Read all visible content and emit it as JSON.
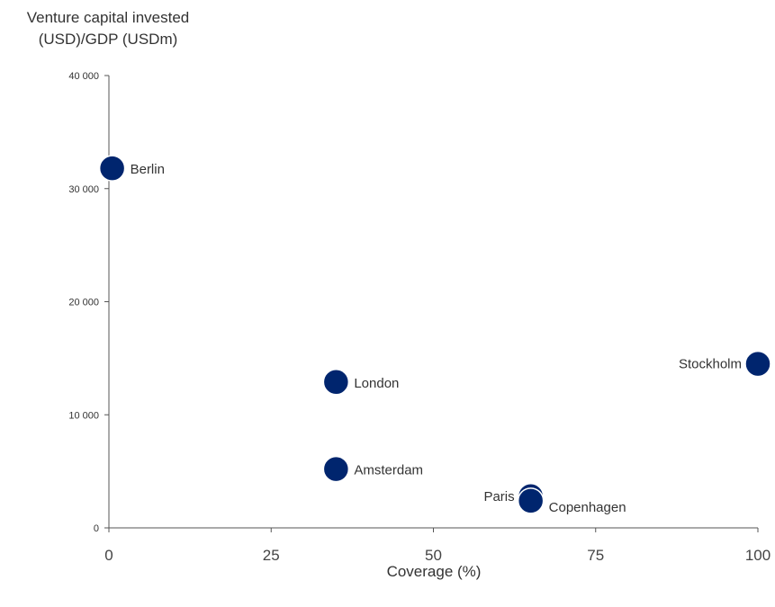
{
  "chart_data": {
    "type": "scatter",
    "title": "",
    "ylabel_lines": [
      "Venture capital invested",
      "(USD)/GDP (USDm)"
    ],
    "xlabel": "Coverage (%)",
    "xlim": [
      0,
      100
    ],
    "ylim": [
      0,
      40000
    ],
    "xticks": [
      0,
      25,
      50,
      75,
      100
    ],
    "xtick_labels": [
      "0",
      "25",
      "50",
      "75",
      "100"
    ],
    "yticks": [
      0,
      10000,
      20000,
      30000,
      40000
    ],
    "ytick_labels": [
      "0",
      "10 000",
      "20 000",
      "30 000",
      "40 000"
    ],
    "grid": false,
    "marker_color": "#00256E",
    "points": [
      {
        "label": "Berlin",
        "x": 0.5,
        "y": 31800,
        "label_side": "right"
      },
      {
        "label": "London",
        "x": 35,
        "y": 12900,
        "label_side": "right"
      },
      {
        "label": "Amsterdam",
        "x": 35,
        "y": 5200,
        "label_side": "right"
      },
      {
        "label": "Paris",
        "x": 65,
        "y": 2800,
        "label_side": "left"
      },
      {
        "label": "Copenhagen",
        "x": 65,
        "y": 2400,
        "label_side": "right-below"
      },
      {
        "label": "Stockholm",
        "x": 100,
        "y": 14500,
        "label_side": "left"
      }
    ]
  }
}
